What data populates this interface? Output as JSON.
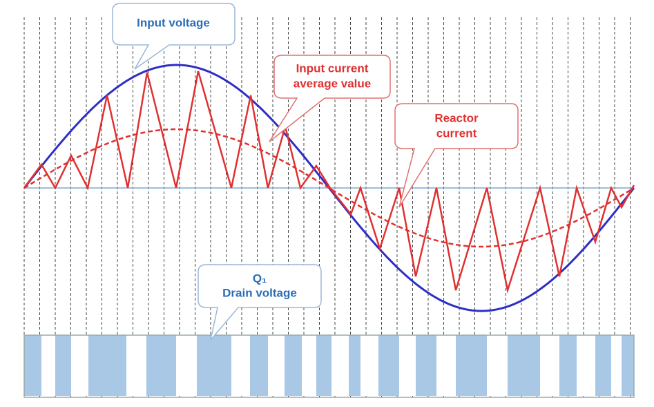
{
  "callouts": [
    {
      "lines": [
        "Input voltage"
      ]
    },
    {
      "lines": [
        "Input current",
        "average value"
      ]
    },
    {
      "lines": [
        "Reactor",
        "current"
      ]
    },
    {
      "lines": [
        "Q₁",
        "Drain voltage"
      ]
    }
  ]
}
